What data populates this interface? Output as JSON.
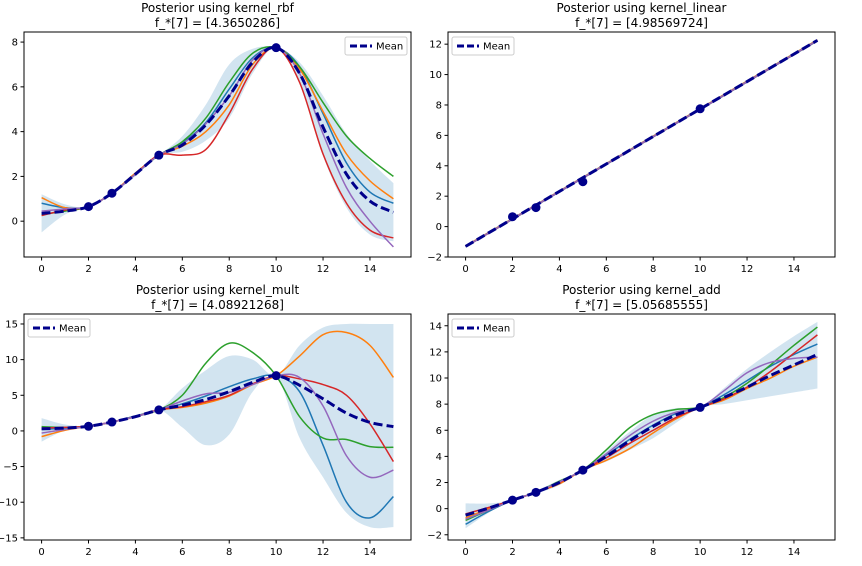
{
  "chart_data": [
    {
      "type": "line",
      "title": "Posterior using kernel_rbf",
      "subtitle": "f_*[7] = [4.3650286]",
      "xlim": [
        -0.75,
        15.75
      ],
      "ylim": [
        -1.6,
        8.45
      ],
      "xticks": [
        0,
        2,
        4,
        6,
        8,
        10,
        12,
        14
      ],
      "xtick_labels": [
        "0",
        "2",
        "4",
        "6",
        "8",
        "10",
        "12",
        "14"
      ],
      "yticks": [
        0,
        2,
        4,
        6,
        8
      ],
      "ytick_labels": [
        "0",
        "2",
        "4",
        "6",
        "8"
      ],
      "legend": {
        "label": "Mean",
        "position": "top-right"
      },
      "observations": {
        "x": [
          2,
          3,
          5,
          10
        ],
        "y": [
          0.65,
          1.25,
          2.95,
          7.75
        ]
      },
      "mean": {
        "x": [
          0,
          1,
          2,
          3,
          4,
          5,
          6,
          7,
          8,
          9,
          10,
          11,
          12,
          13,
          14,
          15
        ],
        "y": [
          0.35,
          0.45,
          0.65,
          1.25,
          2.1,
          2.95,
          3.4,
          4.3,
          5.6,
          7.1,
          7.75,
          6.6,
          4.2,
          2.1,
          0.9,
          0.4
        ]
      },
      "band": {
        "x": [
          0,
          1,
          2,
          3,
          4,
          5,
          6,
          7,
          8,
          9,
          10,
          11,
          12,
          13,
          14,
          15
        ],
        "lower": [
          -0.5,
          0.3,
          0.65,
          1.2,
          2.0,
          2.95,
          3.1,
          3.6,
          4.6,
          6.6,
          7.75,
          6.2,
          2.9,
          0.6,
          -0.6,
          -0.9
        ],
        "upper": [
          1.2,
          0.75,
          0.65,
          1.3,
          2.2,
          2.95,
          3.8,
          5.2,
          7.0,
          7.7,
          7.75,
          7.1,
          5.6,
          3.9,
          2.7,
          1.7
        ]
      },
      "samples": [
        {
          "color": "#1f77b4",
          "x": [
            0,
            1,
            2,
            3,
            4,
            5,
            6,
            7,
            8,
            9,
            10,
            11,
            12,
            13,
            14,
            15
          ],
          "y": [
            0.8,
            0.6,
            0.65,
            1.25,
            2.1,
            2.95,
            3.5,
            4.4,
            5.9,
            7.3,
            7.75,
            6.9,
            4.8,
            2.6,
            1.3,
            0.8
          ]
        },
        {
          "color": "#ff7f0e",
          "x": [
            0,
            1,
            2,
            3,
            4,
            5,
            6,
            7,
            8,
            9,
            10,
            11,
            12,
            13,
            14,
            15
          ],
          "y": [
            1.05,
            0.6,
            0.65,
            1.25,
            2.15,
            2.95,
            3.35,
            4.0,
            5.2,
            7.0,
            7.75,
            6.8,
            4.9,
            3.0,
            1.8,
            1.0
          ]
        },
        {
          "color": "#2ca02c",
          "x": [
            0,
            1,
            2,
            3,
            4,
            5,
            6,
            7,
            8,
            9,
            10,
            11,
            12,
            13,
            14,
            15
          ],
          "y": [
            0.3,
            0.45,
            0.65,
            1.25,
            2.1,
            2.95,
            3.55,
            4.6,
            6.2,
            7.5,
            7.75,
            6.9,
            5.3,
            3.8,
            2.8,
            2.0
          ]
        },
        {
          "color": "#d62728",
          "x": [
            0,
            1,
            2,
            3,
            4,
            5,
            6,
            7,
            8,
            9,
            10,
            11,
            12,
            13,
            14,
            15
          ],
          "y": [
            0.25,
            0.5,
            0.65,
            1.25,
            2.1,
            2.95,
            2.95,
            3.2,
            4.8,
            6.8,
            7.75,
            6.2,
            3.0,
            0.8,
            -0.4,
            -0.75
          ]
        },
        {
          "color": "#9467bd",
          "x": [
            0,
            1,
            2,
            3,
            4,
            5,
            6,
            7,
            8,
            9,
            10,
            11,
            12,
            13,
            14,
            15
          ],
          "y": [
            0.45,
            0.55,
            0.65,
            1.25,
            2.1,
            2.95,
            3.45,
            4.35,
            5.6,
            7.2,
            7.75,
            6.6,
            3.9,
            1.5,
            0.0,
            -1.15
          ]
        }
      ]
    },
    {
      "type": "line",
      "title": "Posterior using kernel_linear",
      "subtitle": "f_*[7] = [4.98569724]",
      "xlim": [
        -0.75,
        15.75
      ],
      "ylim": [
        -2.0,
        12.8
      ],
      "xticks": [
        0,
        2,
        4,
        6,
        8,
        10,
        12,
        14
      ],
      "xtick_labels": [
        "0",
        "2",
        "4",
        "6",
        "8",
        "10",
        "12",
        "14"
      ],
      "yticks": [
        -2,
        0,
        2,
        4,
        6,
        8,
        10,
        12
      ],
      "ytick_labels": [
        "−2",
        "0",
        "2",
        "4",
        "6",
        "8",
        "10",
        "12"
      ],
      "legend": {
        "label": "Mean",
        "position": "top-left"
      },
      "observations": {
        "x": [
          2,
          3,
          5,
          10
        ],
        "y": [
          0.65,
          1.25,
          2.95,
          7.75
        ]
      },
      "mean": {
        "x": [
          0,
          15
        ],
        "y": [
          -1.3,
          12.25
        ]
      },
      "band": {
        "x": [
          0,
          15
        ],
        "lower": [
          -1.4,
          12.15
        ],
        "upper": [
          -1.2,
          12.35
        ]
      },
      "samples": [
        {
          "color": "#1f77b4",
          "x": [
            0,
            15
          ],
          "y": [
            -1.32,
            12.22
          ]
        },
        {
          "color": "#ff7f0e",
          "x": [
            0,
            15
          ],
          "y": [
            -1.28,
            12.28
          ]
        },
        {
          "color": "#2ca02c",
          "x": [
            0,
            15
          ],
          "y": [
            -1.3,
            12.26
          ]
        },
        {
          "color": "#d62728",
          "x": [
            0,
            15
          ],
          "y": [
            -1.31,
            12.24
          ]
        },
        {
          "color": "#9467bd",
          "x": [
            0,
            15
          ],
          "y": [
            -1.3,
            12.25
          ]
        }
      ]
    },
    {
      "type": "line",
      "title": "Posterior using kernel_mult",
      "subtitle": "f_*[7] = [4.08921268]",
      "xlim": [
        -0.75,
        15.75
      ],
      "ylim": [
        -15.3,
        16.4
      ],
      "xticks": [
        0,
        2,
        4,
        6,
        8,
        10,
        12,
        14
      ],
      "xtick_labels": [
        "0",
        "2",
        "4",
        "6",
        "8",
        "10",
        "12",
        "14"
      ],
      "yticks": [
        -15,
        -10,
        -5,
        0,
        5,
        10,
        15
      ],
      "ytick_labels": [
        "−15",
        "−10",
        "−5",
        "0",
        "5",
        "10",
        "15"
      ],
      "legend": {
        "label": "Mean",
        "position": "top-left"
      },
      "observations": {
        "x": [
          2,
          3,
          5,
          10
        ],
        "y": [
          0.65,
          1.25,
          2.95,
          7.75
        ]
      },
      "mean": {
        "x": [
          0,
          1,
          2,
          3,
          4,
          5,
          6,
          7,
          8,
          9,
          10,
          11,
          12,
          13,
          14,
          15
        ],
        "y": [
          0.3,
          0.4,
          0.65,
          1.25,
          2.0,
          2.95,
          3.6,
          4.4,
          5.5,
          6.8,
          7.75,
          6.4,
          4.5,
          2.5,
          1.2,
          0.6
        ]
      },
      "band": {
        "x": [
          0,
          1,
          2,
          3,
          4,
          5,
          6,
          7,
          8,
          9,
          10,
          11,
          12,
          13,
          14,
          15
        ],
        "lower": [
          -1.5,
          0.1,
          0.65,
          1.15,
          1.8,
          2.95,
          0.5,
          -2.0,
          -0.5,
          5.5,
          7.75,
          -1.0,
          -6.5,
          -11.5,
          -13.5,
          -13.5
        ],
        "upper": [
          1.8,
          0.9,
          0.65,
          1.35,
          2.2,
          2.95,
          6.0,
          8.5,
          10.5,
          10.0,
          7.75,
          12.0,
          14.5,
          15.0,
          15.0,
          15.0
        ]
      },
      "samples": [
        {
          "color": "#1f77b4",
          "x": [
            0,
            1,
            2,
            3,
            4,
            5,
            6,
            7,
            8,
            9,
            10,
            11,
            12,
            13,
            14,
            15
          ],
          "y": [
            0.2,
            0.4,
            0.65,
            1.25,
            2.1,
            2.95,
            3.8,
            4.9,
            6.2,
            7.3,
            7.75,
            5.5,
            -2.0,
            -10.0,
            -12.2,
            -9.2
          ]
        },
        {
          "color": "#ff7f0e",
          "x": [
            0,
            1,
            2,
            3,
            4,
            5,
            6,
            7,
            8,
            9,
            10,
            11,
            12,
            13,
            14,
            15
          ],
          "y": [
            -0.8,
            0.1,
            0.65,
            1.25,
            2.0,
            2.95,
            3.3,
            3.9,
            4.9,
            6.5,
            7.75,
            10.5,
            13.5,
            13.8,
            12.0,
            7.5
          ]
        },
        {
          "color": "#2ca02c",
          "x": [
            0,
            1,
            2,
            3,
            4,
            5,
            6,
            7,
            8,
            9,
            10,
            11,
            12,
            13,
            14,
            15
          ],
          "y": [
            0.6,
            0.5,
            0.65,
            1.25,
            2.0,
            2.95,
            5.0,
            9.5,
            12.3,
            11.0,
            7.75,
            2.0,
            -1.0,
            -1.2,
            -2.2,
            -2.3
          ]
        },
        {
          "color": "#d62728",
          "x": [
            0,
            1,
            2,
            3,
            4,
            5,
            6,
            7,
            8,
            9,
            10,
            11,
            12,
            13,
            14,
            15
          ],
          "y": [
            0.4,
            0.5,
            0.65,
            1.25,
            2.0,
            2.95,
            3.4,
            4.1,
            5.0,
            6.6,
            7.75,
            7.3,
            6.5,
            5.0,
            1.0,
            -4.3
          ]
        },
        {
          "color": "#9467bd",
          "x": [
            0,
            1,
            2,
            3,
            4,
            5,
            6,
            7,
            8,
            9,
            10,
            11,
            12,
            13,
            14,
            15
          ],
          "y": [
            -0.3,
            0.2,
            0.65,
            1.25,
            2.0,
            2.95,
            4.2,
            5.2,
            5.4,
            6.5,
            7.75,
            7.5,
            3.5,
            -3.5,
            -6.5,
            -5.5
          ]
        }
      ]
    },
    {
      "type": "line",
      "title": "Posterior using kernel_add",
      "subtitle": "f_*[7] = [5.05685555]",
      "xlim": [
        -0.75,
        15.75
      ],
      "ylim": [
        -2.4,
        14.9
      ],
      "xticks": [
        0,
        2,
        4,
        6,
        8,
        10,
        12,
        14
      ],
      "xtick_labels": [
        "0",
        "2",
        "4",
        "6",
        "8",
        "10",
        "12",
        "14"
      ],
      "yticks": [
        -2,
        0,
        2,
        4,
        6,
        8,
        10,
        12,
        14
      ],
      "ytick_labels": [
        "−2",
        "0",
        "2",
        "4",
        "6",
        "8",
        "10",
        "12",
        "14"
      ],
      "legend": {
        "label": "Mean",
        "position": "top-left"
      },
      "observations": {
        "x": [
          2,
          3,
          5,
          10
        ],
        "y": [
          0.65,
          1.25,
          2.95,
          7.75
        ]
      },
      "mean": {
        "x": [
          0,
          1,
          2,
          3,
          4,
          5,
          6,
          7,
          8,
          9,
          10,
          11,
          12,
          13,
          14,
          15
        ],
        "y": [
          -0.5,
          0.05,
          0.65,
          1.25,
          2.0,
          2.95,
          4.0,
          5.2,
          6.3,
          7.2,
          7.75,
          8.5,
          9.3,
          10.2,
          11.0,
          11.8
        ]
      },
      "band": {
        "x": [
          0,
          1,
          2,
          3,
          4,
          5,
          6,
          7,
          8,
          9,
          10,
          11,
          12,
          13,
          14,
          15
        ],
        "lower": [
          -1.5,
          -0.3,
          0.65,
          1.15,
          1.8,
          2.95,
          3.6,
          4.5,
          5.4,
          6.6,
          7.75,
          8.0,
          8.3,
          8.6,
          8.9,
          9.2
        ],
        "upper": [
          0.4,
          0.4,
          0.65,
          1.35,
          2.2,
          2.95,
          4.4,
          5.9,
          7.2,
          7.7,
          7.75,
          9.2,
          10.7,
          12.0,
          13.2,
          14.3
        ]
      },
      "samples": [
        {
          "color": "#1f77b4",
          "x": [
            0,
            1,
            2,
            3,
            4,
            5,
            6,
            7,
            8,
            9,
            10,
            11,
            12,
            13,
            14,
            15
          ],
          "y": [
            -1.2,
            -0.2,
            0.65,
            1.25,
            2.0,
            2.95,
            4.1,
            5.3,
            6.4,
            7.3,
            7.75,
            8.7,
            9.8,
            10.9,
            11.8,
            12.6
          ]
        },
        {
          "color": "#ff7f0e",
          "x": [
            0,
            1,
            2,
            3,
            4,
            5,
            6,
            7,
            8,
            9,
            10,
            11,
            12,
            13,
            14,
            15
          ],
          "y": [
            -0.7,
            0.0,
            0.65,
            1.25,
            1.9,
            2.95,
            3.7,
            4.6,
            5.8,
            6.9,
            7.75,
            8.3,
            9.2,
            10.0,
            10.9,
            11.6
          ]
        },
        {
          "color": "#2ca02c",
          "x": [
            0,
            1,
            2,
            3,
            4,
            5,
            6,
            7,
            8,
            9,
            10,
            11,
            12,
            13,
            14,
            15
          ],
          "y": [
            -0.9,
            -0.1,
            0.65,
            1.25,
            2.1,
            2.95,
            4.5,
            6.2,
            7.2,
            7.6,
            7.75,
            8.5,
            9.6,
            11.0,
            12.5,
            13.9
          ]
        },
        {
          "color": "#d62728",
          "x": [
            0,
            1,
            2,
            3,
            4,
            5,
            6,
            7,
            8,
            9,
            10,
            11,
            12,
            13,
            14,
            15
          ],
          "y": [
            -0.4,
            0.1,
            0.65,
            1.25,
            2.0,
            2.95,
            3.9,
            5.0,
            6.0,
            7.0,
            7.75,
            8.4,
            9.3,
            10.5,
            11.9,
            13.3
          ]
        },
        {
          "color": "#9467bd",
          "x": [
            0,
            1,
            2,
            3,
            4,
            5,
            6,
            7,
            8,
            9,
            10,
            11,
            12,
            13,
            14,
            15
          ],
          "y": [
            -0.8,
            -0.1,
            0.65,
            1.25,
            2.05,
            2.95,
            4.2,
            5.6,
            6.7,
            7.4,
            7.75,
            9.0,
            10.4,
            11.2,
            11.5,
            11.6
          ]
        }
      ]
    }
  ],
  "colors": {
    "mean": "#00008b",
    "observation": "#00008b",
    "band": "#1f77b4",
    "axis": "#000000"
  }
}
